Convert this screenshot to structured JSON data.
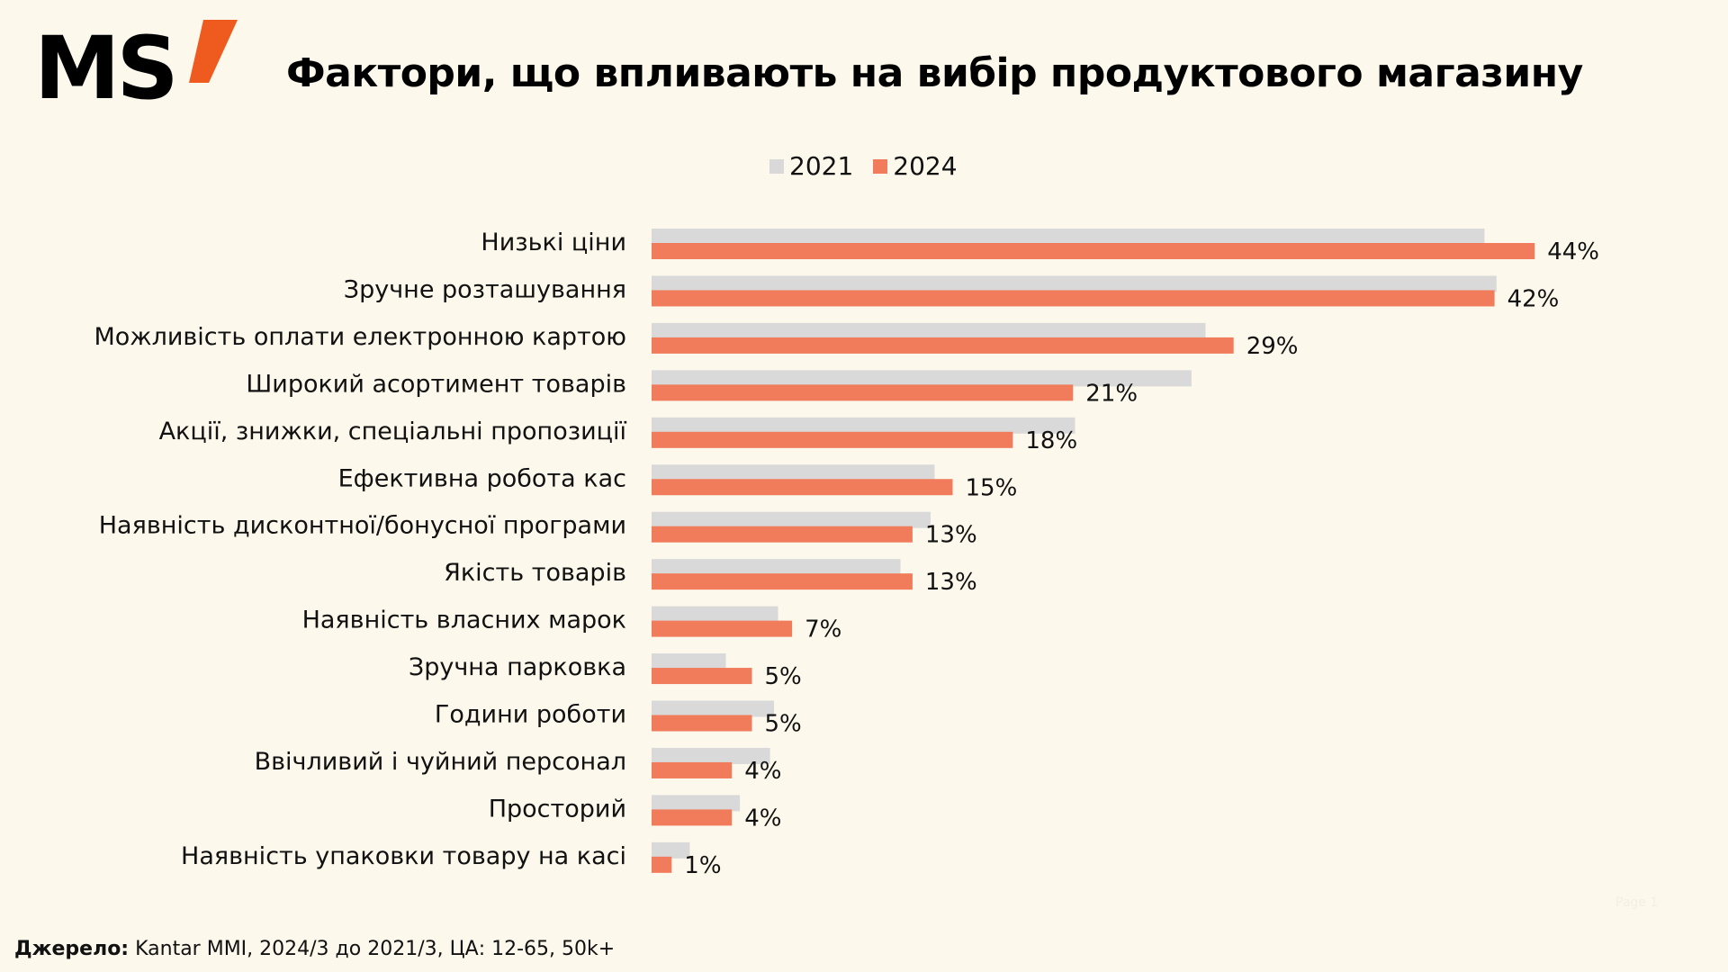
{
  "brand": {
    "logo_text": "MS"
  },
  "title": "Фактори, що впливають на вибір продуктового магазину",
  "colors": {
    "series_2021": "#d9d9d9",
    "series_2024": "#f07c5c",
    "accent": "#ef5a1e",
    "background": "#fcf8eb"
  },
  "chart_data": {
    "type": "bar",
    "orientation": "horizontal",
    "title": "Фактори, що впливають на вибір продуктового магазину",
    "legend_position": "top",
    "categories": [
      "Низькі ціни",
      "Зручне розташування",
      "Можливість оплати електронною картою",
      "Широкий асортимент товарів",
      "Акції, знижки, спеціальні пропозиції",
      "Ефективна робота кас",
      "Наявність дисконтної/бонусної програми",
      "Якість товарів",
      "Наявність власних марок",
      "Зручна парковка",
      "Години роботи",
      "Ввічливий і чуйний персонал",
      "Просторий",
      "Наявність упаковки товару на касі"
    ],
    "series": [
      {
        "name": "2021",
        "values": [
          41.5,
          42.1,
          27.6,
          26.9,
          21.1,
          14.1,
          13.9,
          12.4,
          6.3,
          3.7,
          6.1,
          5.9,
          4.4,
          1.9
        ]
      },
      {
        "name": "2024",
        "values": [
          44,
          42,
          29,
          21,
          18,
          15,
          13,
          13,
          7,
          5,
          5,
          4,
          4,
          1
        ]
      }
    ],
    "data_labels": [
      "44%",
      "42%",
      "29%",
      "21%",
      "18%",
      "15%",
      "13%",
      "13%",
      "7%",
      "5%",
      "5%",
      "4%",
      "4%",
      "1%"
    ],
    "xlim": [
      0,
      50
    ],
    "grid": false
  },
  "source": {
    "label": "Джерело:",
    "text": " Kantar MMI, 2024/3 до 2021/3, ЦА: 12-65, 50k+"
  },
  "page_mark": "Page 1"
}
